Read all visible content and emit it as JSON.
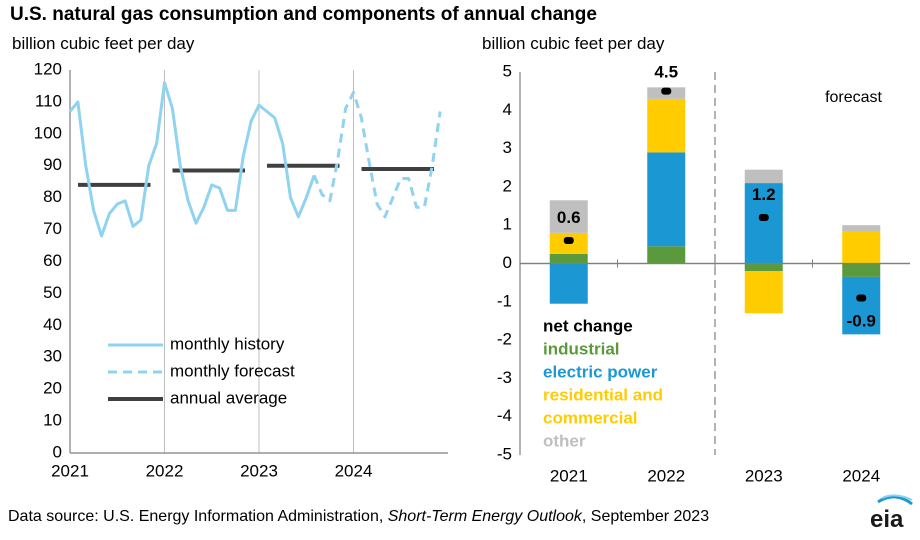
{
  "title": "U.S. natural gas consumption and components of annual change",
  "left_panel": {
    "unit_label": "billion cubic feet per day"
  },
  "right_panel": {
    "unit_label": "billion cubic feet per day"
  },
  "source": {
    "prefix": "Data source: U.S. Energy Information Administration, ",
    "italic": "Short-Term Energy Outlook",
    "suffix": ", September 2023"
  },
  "logo_text": "eia",
  "colors": {
    "history": "#8fd3f0",
    "forecast": "#8fd3f0",
    "annual": "#404040",
    "industrial": "#5b9a3c",
    "electric_power": "#1b98d4",
    "residential_commercial": "#ffcc00",
    "other": "#bfbfbf",
    "net_change": "#000000"
  },
  "chart_data": [
    {
      "type": "line",
      "ylabel": "billion cubic feet per day",
      "ylim": [
        0,
        120
      ],
      "yticks": [
        0,
        10,
        20,
        30,
        40,
        50,
        60,
        70,
        80,
        90,
        100,
        110,
        120
      ],
      "xticks": [
        "2021",
        "2022",
        "2023",
        "2024"
      ],
      "xlim": [
        2021,
        2025
      ],
      "legend": [
        "monthly history",
        "monthly forecast",
        "annual average"
      ],
      "series": [
        {
          "name": "monthly history",
          "style": "solid",
          "x": [
            "2021-01",
            "2021-02",
            "2021-03",
            "2021-04",
            "2021-05",
            "2021-06",
            "2021-07",
            "2021-08",
            "2021-09",
            "2021-10",
            "2021-11",
            "2021-12",
            "2022-01",
            "2022-02",
            "2022-03",
            "2022-04",
            "2022-05",
            "2022-06",
            "2022-07",
            "2022-08",
            "2022-09",
            "2022-10",
            "2022-11",
            "2022-12",
            "2023-01",
            "2023-02",
            "2023-03",
            "2023-04",
            "2023-05",
            "2023-06",
            "2023-07",
            "2023-08"
          ],
          "values": [
            107,
            110,
            90,
            76,
            68,
            75,
            78,
            79,
            71,
            73,
            90,
            97,
            116,
            108,
            90,
            79,
            72,
            77,
            84,
            83,
            76,
            76,
            93,
            104,
            109,
            107,
            105,
            97,
            80,
            74,
            80,
            87
          ]
        },
        {
          "name": "monthly forecast",
          "style": "dashed",
          "x": [
            "2023-08",
            "2023-09",
            "2023-10",
            "2023-11",
            "2023-12",
            "2024-01",
            "2024-02",
            "2024-03",
            "2024-04",
            "2024-05",
            "2024-06",
            "2024-07",
            "2024-08",
            "2024-09",
            "2024-10",
            "2024-11",
            "2024-12"
          ],
          "values": [
            87,
            81,
            79,
            92,
            108,
            113,
            105,
            91,
            78,
            74,
            80,
            86,
            86,
            77,
            77,
            90,
            107
          ]
        },
        {
          "name": "annual average",
          "style": "step",
          "years": [
            2021,
            2022,
            2023,
            2024
          ],
          "values": [
            84,
            88.5,
            90,
            89
          ]
        }
      ]
    },
    {
      "type": "bar",
      "stacked": true,
      "ylabel": "billion cubic feet per day",
      "ylim": [
        -5,
        5
      ],
      "yticks": [
        -5,
        -4,
        -3,
        -2,
        -1,
        0,
        1,
        2,
        3,
        4,
        5
      ],
      "categories": [
        "2021",
        "2022",
        "2023",
        "2024"
      ],
      "annotation": "forecast",
      "forecast_divider_after": "2022",
      "legend": [
        "net change",
        "industrial",
        "electric power",
        "residential and commercial",
        "other"
      ],
      "series": [
        {
          "name": "industrial",
          "values": [
            0.25,
            0.45,
            -0.2,
            -0.35
          ]
        },
        {
          "name": "electric power",
          "values": [
            -1.05,
            2.45,
            2.1,
            -1.5
          ]
        },
        {
          "name": "residential and commercial",
          "values": [
            0.55,
            1.4,
            -1.1,
            0.85
          ]
        },
        {
          "name": "other",
          "values": [
            0.85,
            0.3,
            0.35,
            0.15
          ]
        }
      ],
      "net_change": {
        "name": "net change",
        "values": [
          0.6,
          4.5,
          1.2,
          -0.9
        ],
        "labels": [
          "0.6",
          "4.5",
          "1.2",
          "-0.9"
        ]
      }
    }
  ]
}
